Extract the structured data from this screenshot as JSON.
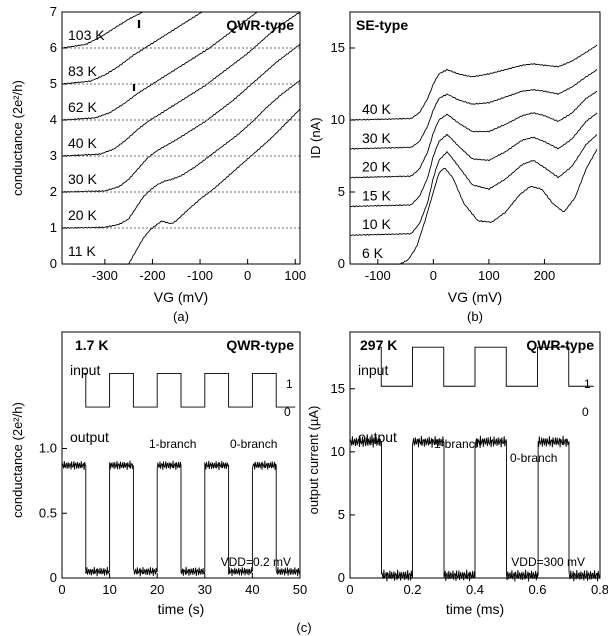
{
  "chart_data": [
    {
      "id": "a",
      "type": "line",
      "panel_label": "(a)",
      "title": "QWR-type",
      "xlabel": "VG (mV)",
      "ylabel": "conductance (2e²/h)",
      "xlim": [
        -390,
        110
      ],
      "ylim": [
        0,
        7
      ],
      "xticks": [
        -300,
        -200,
        -100,
        0,
        100
      ],
      "yticks": [
        0,
        1,
        2,
        3,
        4,
        5,
        6,
        7
      ],
      "series": [
        {
          "name": "11 K",
          "offset": 0,
          "x": [
            -250,
            -235,
            -220,
            -205,
            -190,
            -180,
            -170,
            -160,
            -150,
            -130,
            -100,
            -70,
            -40,
            -10,
            20,
            50,
            80,
            110
          ],
          "y": [
            0,
            0.35,
            0.7,
            0.95,
            1.1,
            1.2,
            1.15,
            1.12,
            1.2,
            1.45,
            1.8,
            2.1,
            2.45,
            2.8,
            3.15,
            3.5,
            3.9,
            4.3
          ]
        },
        {
          "name": "20 K",
          "offset": 1,
          "x": [
            -390,
            -300,
            -270,
            -250,
            -235,
            -220,
            -205,
            -190,
            -175,
            -160,
            -140,
            -110,
            -80,
            -50,
            -20,
            10,
            40,
            70,
            110
          ],
          "y": [
            0,
            0.02,
            0.1,
            0.25,
            0.55,
            0.85,
            1.05,
            1.2,
            1.3,
            1.35,
            1.45,
            1.7,
            2.0,
            2.3,
            2.6,
            2.95,
            3.35,
            3.7,
            4.1
          ]
        },
        {
          "name": "30 K",
          "offset": 2,
          "x": [
            -390,
            -300,
            -270,
            -250,
            -230,
            -210,
            -190,
            -170,
            -150,
            -120,
            -90,
            -60,
            -30,
            0,
            30,
            60,
            110
          ],
          "y": [
            0,
            0.03,
            0.15,
            0.35,
            0.65,
            0.95,
            1.15,
            1.3,
            1.45,
            1.7,
            1.95,
            2.25,
            2.55,
            2.9,
            3.25,
            3.6,
            4.1
          ]
        },
        {
          "name": "40 K",
          "offset": 3,
          "x": [
            -390,
            -310,
            -280,
            -255,
            -230,
            -205,
            -180,
            -150,
            -120,
            -90,
            -60,
            -30,
            0,
            30,
            60,
            110
          ],
          "y": [
            0,
            0.05,
            0.2,
            0.45,
            0.75,
            1.0,
            1.2,
            1.45,
            1.7,
            1.95,
            2.25,
            2.55,
            2.85,
            3.2,
            3.55,
            4.0
          ]
        },
        {
          "name": "62 K",
          "offset": 4,
          "x": [
            -390,
            -320,
            -290,
            -260,
            -230,
            -200,
            -170,
            -140,
            -110,
            -80,
            -50,
            -20,
            10,
            40,
            70,
            110
          ],
          "y": [
            0,
            0.06,
            0.2,
            0.45,
            0.75,
            1.0,
            1.25,
            1.5,
            1.75,
            2.0,
            2.3,
            2.6,
            2.9,
            3.2,
            3.5,
            3.9
          ]
        },
        {
          "name": "83 K",
          "offset": 5,
          "x": [
            -390,
            -330,
            -300,
            -270,
            -240,
            -210,
            -180,
            -150,
            -120,
            -90,
            -60,
            -30,
            0,
            30,
            60,
            110
          ],
          "y": [
            0,
            0.08,
            0.25,
            0.5,
            0.8,
            1.05,
            1.3,
            1.55,
            1.8,
            2.05,
            2.3,
            2.6,
            2.9,
            3.2,
            3.5,
            3.9
          ]
        },
        {
          "name": "103 K",
          "offset": 6,
          "x": [
            -390,
            -340,
            -310,
            -280,
            -250,
            -220,
            -190,
            -160,
            -130,
            -100,
            -70,
            -40,
            -10,
            20,
            50,
            110
          ],
          "y": [
            0,
            0.1,
            0.3,
            0.55,
            0.8,
            1.0,
            1.2,
            1.4,
            1.6,
            1.8,
            2.0,
            2.2,
            2.4,
            2.6,
            2.8,
            3.2
          ]
        }
      ]
    },
    {
      "id": "b",
      "type": "line",
      "panel_label": "(b)",
      "title": "SE-type",
      "xlabel": "VG (mV)",
      "ylabel": "ID (nA)",
      "xlim": [
        -150,
        300
      ],
      "ylim": [
        0,
        17.5
      ],
      "xticks": [
        -100,
        0,
        100,
        200
      ],
      "yticks": [
        0,
        5,
        10,
        15
      ],
      "series": [
        {
          "name": "6 K",
          "offset": 0,
          "x": [
            -60,
            -45,
            -30,
            -15,
            0,
            10,
            20,
            35,
            55,
            80,
            105,
            130,
            155,
            175,
            195,
            215,
            235,
            255,
            275,
            295
          ],
          "y": [
            0,
            0.3,
            1.2,
            3.0,
            5.0,
            6.3,
            6.7,
            6.0,
            4.2,
            3.0,
            2.9,
            3.6,
            4.8,
            5.4,
            5.2,
            4.2,
            3.6,
            4.6,
            6.6,
            8.0
          ]
        },
        {
          "name": "10 K",
          "offset": 2,
          "x": [
            -150,
            -40,
            -25,
            -10,
            0,
            10,
            25,
            45,
            70,
            100,
            130,
            160,
            180,
            200,
            225,
            250,
            275,
            295
          ],
          "y": [
            0,
            0.1,
            0.8,
            2.3,
            4.0,
            5.2,
            5.8,
            4.8,
            3.5,
            3.2,
            3.9,
            4.9,
            5.2,
            4.7,
            4.0,
            4.8,
            6.3,
            7.0
          ]
        },
        {
          "name": "15 K",
          "offset": 4,
          "x": [
            -150,
            -40,
            -25,
            -10,
            0,
            10,
            25,
            45,
            70,
            100,
            130,
            160,
            180,
            200,
            225,
            250,
            275,
            295
          ],
          "y": [
            0,
            0.1,
            0.7,
            2.0,
            3.5,
            4.5,
            5.0,
            4.2,
            3.3,
            3.2,
            3.8,
            4.6,
            4.8,
            4.5,
            4.0,
            4.7,
            5.9,
            6.5
          ]
        },
        {
          "name": "20 K",
          "offset": 6,
          "x": [
            -150,
            -40,
            -25,
            -10,
            0,
            10,
            25,
            45,
            70,
            100,
            130,
            160,
            180,
            200,
            225,
            250,
            275,
            295
          ],
          "y": [
            0,
            0.1,
            0.6,
            1.8,
            3.1,
            4.0,
            4.4,
            3.8,
            3.2,
            3.2,
            3.7,
            4.3,
            4.5,
            4.3,
            3.9,
            4.5,
            5.5,
            6.0
          ]
        },
        {
          "name": "30 K",
          "offset": 8,
          "x": [
            -150,
            -40,
            -25,
            -10,
            0,
            10,
            25,
            45,
            70,
            100,
            130,
            160,
            180,
            200,
            225,
            250,
            275,
            295
          ],
          "y": [
            0,
            0.1,
            0.5,
            1.6,
            2.7,
            3.5,
            3.8,
            3.4,
            3.1,
            3.2,
            3.6,
            4.0,
            4.1,
            4.0,
            3.8,
            4.3,
            5.0,
            5.5
          ]
        },
        {
          "name": "40 K",
          "offset": 10,
          "x": [
            -150,
            -40,
            -25,
            -10,
            0,
            10,
            25,
            45,
            70,
            100,
            130,
            160,
            180,
            200,
            225,
            250,
            275,
            295
          ],
          "y": [
            0,
            0.1,
            0.5,
            1.5,
            2.5,
            3.2,
            3.5,
            3.2,
            3.0,
            3.2,
            3.5,
            3.8,
            3.9,
            3.8,
            3.7,
            4.1,
            4.7,
            5.2
          ]
        }
      ]
    },
    {
      "id": "c1",
      "type": "line",
      "panel_label": "(c)",
      "title": "QWR-type",
      "temperature": "1.7 K",
      "xlabel": "time (s)",
      "ylabel": "conductance (2e²/h)",
      "xlim": [
        0,
        50
      ],
      "ylim": [
        0,
        1.9
      ],
      "xticks": [
        0,
        10,
        20,
        30,
        40,
        50
      ],
      "yticks": [
        0,
        0.5,
        1.0
      ],
      "ytick_labels": [
        "0",
        "0.5",
        "1.0"
      ],
      "input_label": "input",
      "output_label": "output",
      "level_high_label": "1",
      "level_low_label": "0",
      "branch_high_label": "1-branch",
      "branch_low_label": "0-branch",
      "bias_label": "VDD=0.2 mV",
      "period": 10,
      "input_high": 1.58,
      "input_low": 1.32,
      "output_high": 0.87,
      "output_low": 0.05
    },
    {
      "id": "c2",
      "type": "line",
      "title": "QWR-type",
      "temperature": "297 K",
      "xlabel": "time (ms)",
      "ylabel": "output current (µA)",
      "xlim": [
        0,
        0.8
      ],
      "ylim": [
        0,
        19.5
      ],
      "xticks": [
        0,
        0.2,
        0.4,
        0.6,
        0.8
      ],
      "yticks": [
        0,
        5,
        10,
        15
      ],
      "input_label": "input",
      "output_label": "output",
      "level_high_label": "1",
      "level_low_label": "0",
      "branch_high_label": "1-branch",
      "branch_low_label": "0-branch",
      "bias_label": "VDD=300 mV",
      "period": 0.2,
      "input_high": 18.3,
      "input_low": 15.2,
      "output_high": 10.8,
      "output_low": 0.2
    }
  ]
}
